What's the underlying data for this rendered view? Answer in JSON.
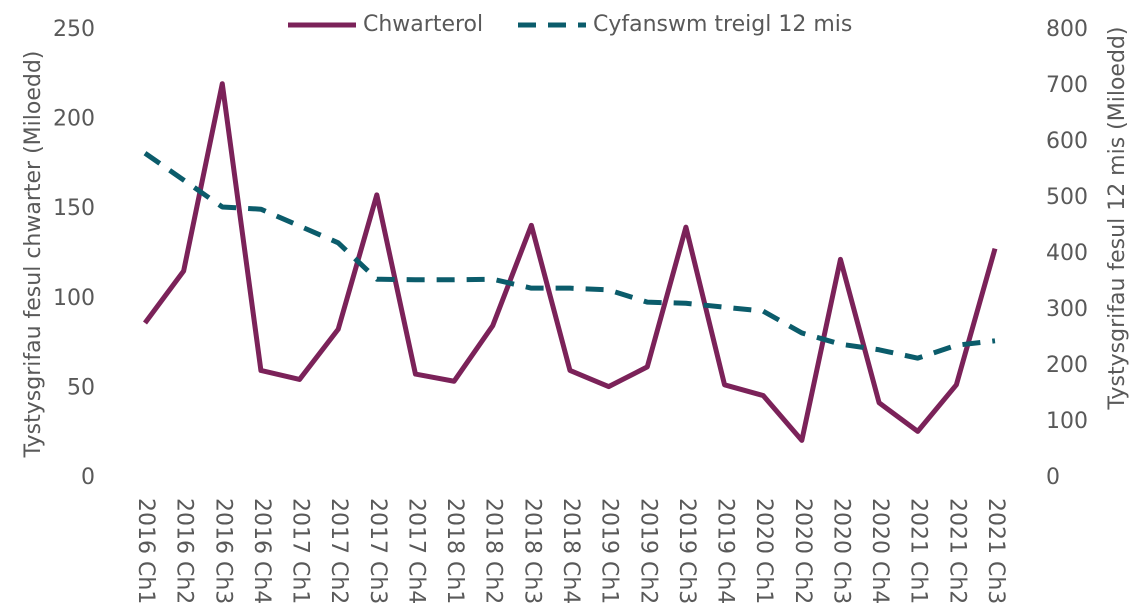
{
  "chart_data": {
    "type": "line",
    "categories": [
      "2016 Ch1",
      "2016 Ch2",
      "2016 Ch3",
      "2016 Ch4",
      "2017 Ch1",
      "2017 Ch2",
      "2017 Ch3",
      "2017 Ch4",
      "2018 Ch1",
      "2018 Ch2",
      "2018 Ch3",
      "2018 Ch4",
      "2019 Ch1",
      "2019 Ch2",
      "2019 Ch3",
      "2019 Ch4",
      "2020 Ch1",
      "2020 Ch2",
      "2020 Ch3",
      "2020 Ch4",
      "2021 Ch1",
      "2021 Ch2",
      "2021 Ch3"
    ],
    "series": [
      {
        "name": "Chwarterol",
        "color": "#7b2259",
        "line_style": "solid",
        "values": [
          86.5,
          115.5,
          220,
          60,
          55,
          83,
          158,
          58,
          54,
          85,
          141,
          60,
          51,
          62,
          140,
          52,
          46,
          21,
          122,
          42,
          26,
          52,
          128
        ]
      },
      {
        "name": "Cyfanswm treigl 12 mis",
        "color": "#0b5c6b",
        "line_style": "dashed",
        "axis": "y2",
        "values": [
          580,
          532,
          484,
          480,
          450,
          420,
          355,
          354,
          354,
          355,
          339,
          339,
          336,
          314,
          312,
          305,
          298,
          259,
          239,
          229,
          214,
          237,
          245
        ]
      }
    ],
    "ylabel": "Tystysgrifau fesul chwarter (Miloedd)",
    "y2label": "Tystysgrifau fesul 12 mis (Miloedd)",
    "ylim": [
      0,
      250
    ],
    "yticks": [
      0,
      50,
      100,
      150,
      200,
      250
    ],
    "y2lim": [
      0,
      800
    ],
    "y2ticks": [
      0,
      100,
      200,
      300,
      400,
      500,
      600,
      700,
      800
    ],
    "legend": "top"
  }
}
